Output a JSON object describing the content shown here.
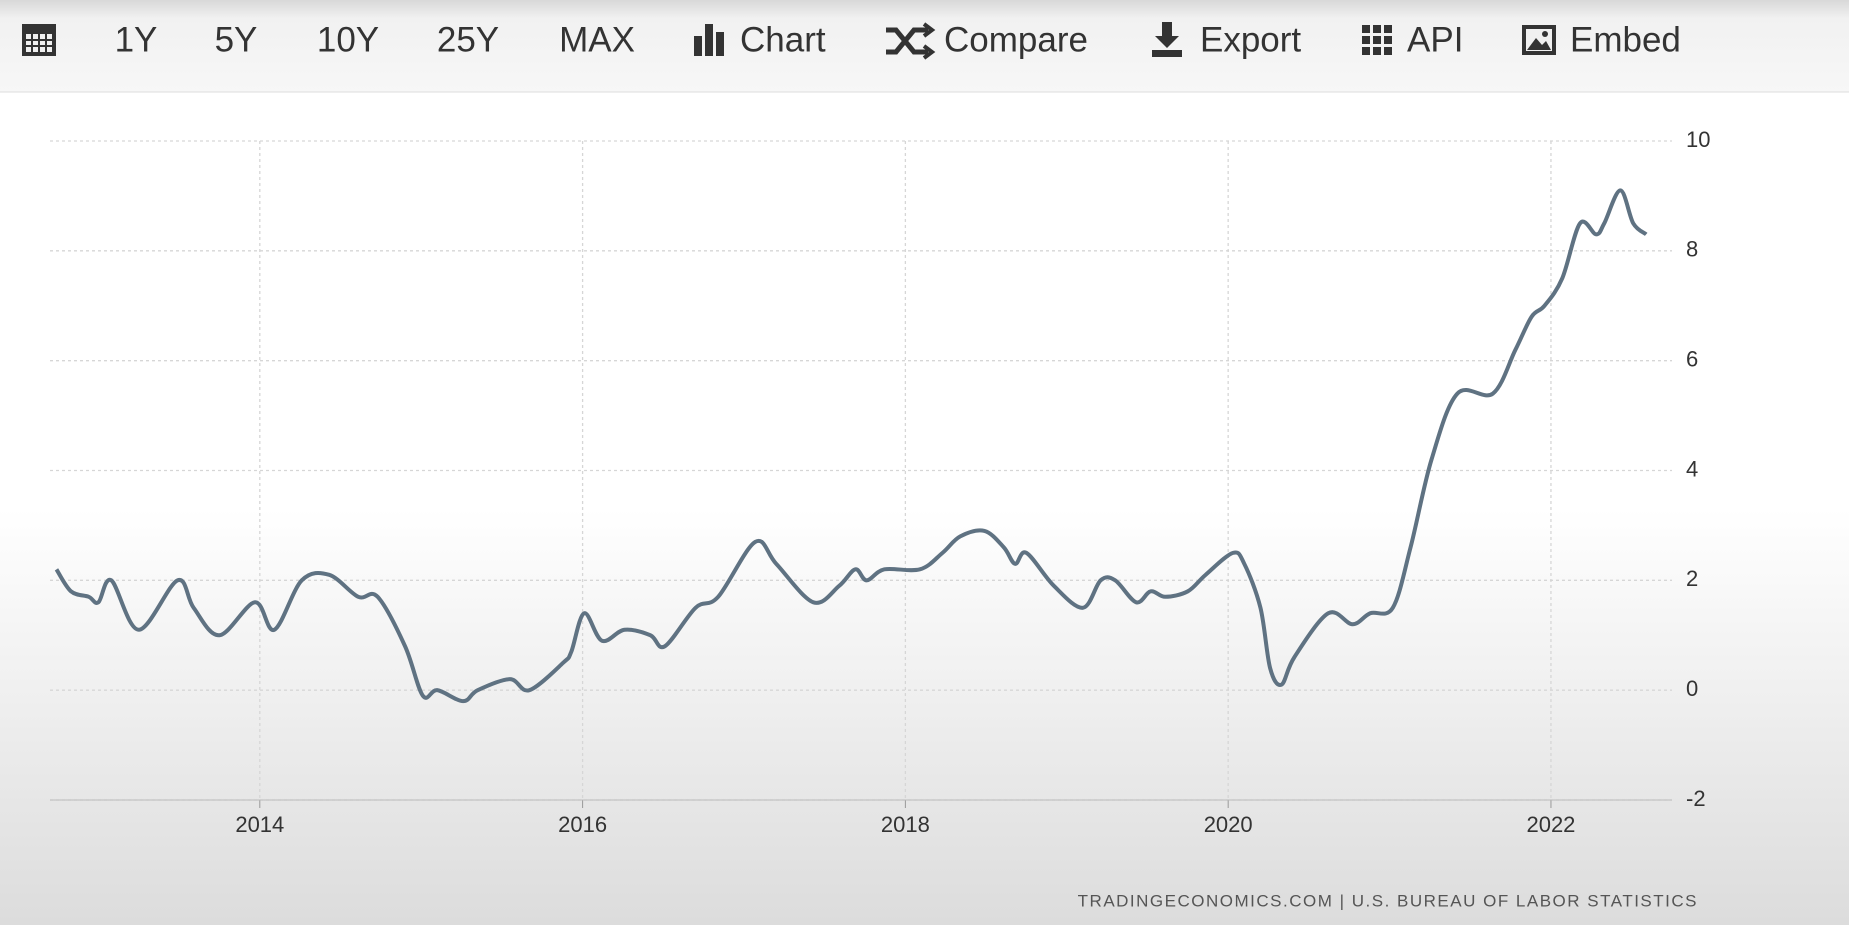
{
  "toolbar": {
    "buttons": [
      "1Y",
      "5Y",
      "10Y",
      "25Y",
      "MAX",
      "Chart",
      "Compare",
      "Export",
      "API",
      "Embed"
    ]
  },
  "chart_data": {
    "type": "line",
    "color": "#5f7282",
    "grid": true,
    "x": [
      2012.74,
      2012.83,
      2012.94,
      2013.0,
      2013.08,
      2013.25,
      2013.49,
      2013.59,
      2013.75,
      2013.97,
      2014.09,
      2014.26,
      2014.43,
      2014.61,
      2014.73,
      2014.9,
      2015.01,
      2015.1,
      2015.26,
      2015.35,
      2015.55,
      2015.67,
      2015.88,
      2015.93,
      2016.01,
      2016.12,
      2016.26,
      2016.42,
      2016.51,
      2016.7,
      2016.84,
      2017.07,
      2017.2,
      2017.43,
      2017.59,
      2017.69,
      2017.76,
      2017.87,
      2018.09,
      2018.23,
      2018.34,
      2018.49,
      2018.61,
      2018.68,
      2018.75,
      2018.92,
      2019.1,
      2019.21,
      2019.3,
      2019.43,
      2019.52,
      2019.61,
      2019.75,
      2019.86,
      2020.03,
      2020.1,
      2020.2,
      2020.26,
      2020.33,
      2020.41,
      2020.62,
      2020.77,
      2020.88,
      2021.02,
      2021.13,
      2021.26,
      2021.42,
      2021.64,
      2021.78,
      2021.88,
      2021.96,
      2022.07,
      2022.18,
      2022.28,
      2022.33,
      2022.43,
      2022.51,
      2022.59
    ],
    "values": [
      2.2,
      1.8,
      1.7,
      1.6,
      2.0,
      1.1,
      2.0,
      1.5,
      1.0,
      1.6,
      1.1,
      2.0,
      2.1,
      1.7,
      1.7,
      0.8,
      -0.1,
      0.0,
      -0.2,
      0.0,
      0.2,
      0.0,
      0.5,
      0.7,
      1.4,
      0.9,
      1.1,
      1.0,
      0.8,
      1.5,
      1.7,
      2.7,
      2.3,
      1.6,
      1.9,
      2.2,
      2.0,
      2.2,
      2.2,
      2.5,
      2.8,
      2.9,
      2.6,
      2.3,
      2.5,
      1.9,
      1.5,
      2.0,
      2.0,
      1.6,
      1.8,
      1.7,
      1.8,
      2.1,
      2.5,
      2.3,
      1.5,
      0.4,
      0.1,
      0.6,
      1.4,
      1.2,
      1.4,
      1.5,
      2.6,
      4.2,
      5.4,
      5.4,
      6.2,
      6.8,
      7.0,
      7.5,
      8.5,
      8.3,
      8.5,
      9.1,
      8.5,
      8.3
    ],
    "xlim": [
      2012.7,
      2022.75
    ],
    "xticks": [
      2014,
      2016,
      2018,
      2020,
      2022
    ],
    "ylim": [
      -2,
      10
    ],
    "yticks": [
      -2,
      0,
      2,
      4,
      6,
      8,
      10
    ]
  },
  "footer": {
    "source": "TRADINGECONOMICS.COM | U.S. BUREAU OF LABOR STATISTICS"
  }
}
